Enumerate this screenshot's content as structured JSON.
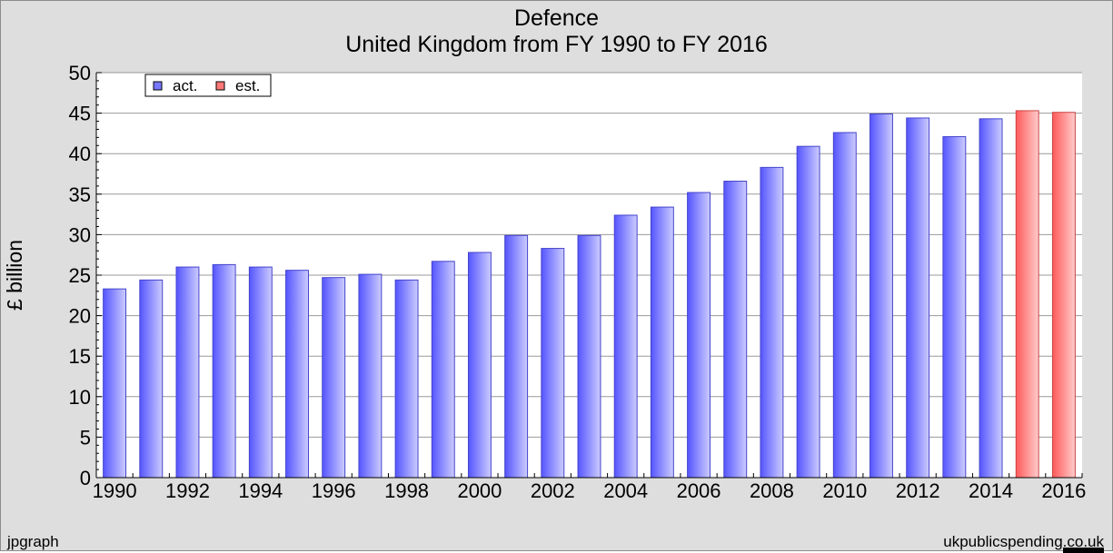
{
  "chart_data": {
    "type": "bar",
    "title": "Defence",
    "subtitle": "United Kingdom from FY 1990 to FY 2016",
    "ylabel": "£ billion",
    "xlabel": "",
    "ylim": [
      0,
      50
    ],
    "y_ticks": [
      "0",
      "5",
      "10",
      "15",
      "20",
      "25",
      "30",
      "35",
      "40",
      "45",
      "50"
    ],
    "x_tick_labels": [
      "1990",
      "1992",
      "1994",
      "1996",
      "1998",
      "2000",
      "2002",
      "2004",
      "2006",
      "2008",
      "2010",
      "2012",
      "2014",
      "2016"
    ],
    "categories": [
      "1990",
      "1991",
      "1992",
      "1993",
      "1994",
      "1995",
      "1996",
      "1997",
      "1998",
      "1999",
      "2000",
      "2001",
      "2002",
      "2003",
      "2004",
      "2005",
      "2006",
      "2007",
      "2008",
      "2009",
      "2010",
      "2011",
      "2012",
      "2013",
      "2014",
      "2015",
      "2016"
    ],
    "values": [
      23.3,
      24.4,
      26.0,
      26.3,
      26.0,
      25.6,
      24.7,
      25.1,
      24.4,
      26.7,
      27.8,
      29.9,
      28.3,
      29.9,
      32.4,
      33.4,
      35.2,
      36.6,
      38.3,
      40.9,
      42.6,
      44.9,
      44.4,
      42.1,
      44.3,
      45.3,
      45.1
    ],
    "status": [
      "act.",
      "act.",
      "act.",
      "act.",
      "act.",
      "act.",
      "act.",
      "act.",
      "act.",
      "act.",
      "act.",
      "act.",
      "act.",
      "act.",
      "act.",
      "act.",
      "act.",
      "act.",
      "act.",
      "act.",
      "act.",
      "act.",
      "act.",
      "act.",
      "act.",
      "est.",
      "est."
    ],
    "legend": {
      "placement": "top-left",
      "items": [
        {
          "label": "act.",
          "color": "#7777ff"
        },
        {
          "label": "est.",
          "color": "#ff7777"
        }
      ]
    },
    "grid": true,
    "colors": {
      "act_dark": "#5555ff",
      "act_light": "#ccccff",
      "est_dark": "#ff5a5a",
      "est_light": "#ffcccc"
    }
  },
  "footer": {
    "left": "jpgraph",
    "right": "ukpublicspending.co.uk"
  }
}
